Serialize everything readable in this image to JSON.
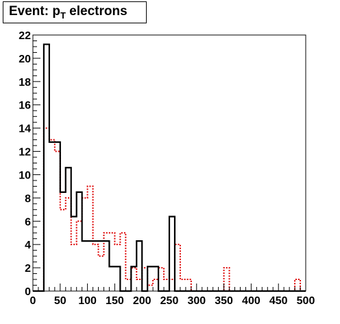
{
  "title": {
    "prefix": "Event: p",
    "subscript": "T",
    "suffix": " electrons"
  },
  "colors": {
    "series_black": "#000000",
    "series_red": "#dd0000",
    "frame": "#000000",
    "background": "#ffffff"
  },
  "chart_data": {
    "type": "histogram",
    "title": "Event: p_T electrons",
    "xlabel": "",
    "ylabel": "",
    "xlim": [
      0,
      500
    ],
    "ylim": [
      0,
      22
    ],
    "grid": false,
    "bin_width": 10,
    "xticks": [
      0,
      50,
      100,
      150,
      200,
      250,
      300,
      350,
      400,
      450,
      500
    ],
    "yticks": [
      0,
      2,
      4,
      6,
      8,
      10,
      12,
      14,
      16,
      18,
      20,
      22
    ],
    "series": [
      {
        "style": "solid",
        "color": "#000000",
        "bin_edges": [
          0,
          20,
          30,
          50,
          60,
          70,
          80,
          90,
          140,
          160,
          180,
          190,
          200,
          210,
          230,
          250,
          260,
          500
        ],
        "values": [
          0,
          21.2,
          12.8,
          8.5,
          10.6,
          6.4,
          8.5,
          4.3,
          2.1,
          0,
          2.1,
          4.3,
          0,
          2.1,
          0,
          6.4,
          0
        ]
      },
      {
        "style": "dotted",
        "color": "#dd0000",
        "bin_edges": [
          0,
          20,
          30,
          40,
          50,
          60,
          70,
          80,
          90,
          100,
          110,
          120,
          130,
          140,
          150,
          160,
          170,
          180,
          190,
          200,
          210,
          220,
          230,
          240,
          250,
          260,
          270,
          280,
          290,
          350,
          360,
          480,
          490,
          500
        ],
        "values": [
          0,
          14,
          13,
          12,
          7,
          8,
          4,
          6,
          8,
          9,
          4,
          3,
          5,
          5,
          4,
          5,
          1,
          2,
          1,
          2,
          0.5,
          1,
          2,
          1,
          1,
          4,
          1,
          1,
          0,
          2,
          0,
          1,
          0
        ]
      }
    ]
  }
}
